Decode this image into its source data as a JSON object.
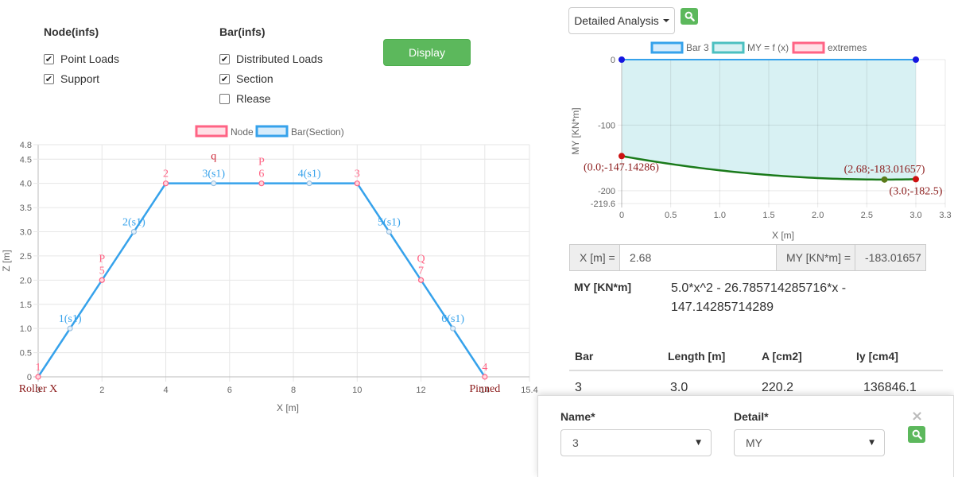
{
  "options": {
    "node_heading": "Node(infs)",
    "bar_heading": "Bar(infs)",
    "node_items": [
      {
        "label": "Point Loads",
        "checked": true
      },
      {
        "label": "Support",
        "checked": true
      }
    ],
    "bar_items": [
      {
        "label": "Distributed Loads",
        "checked": true
      },
      {
        "label": "Section",
        "checked": true
      },
      {
        "label": "Rlease",
        "checked": false
      }
    ],
    "display_button": "Display",
    "check_mark": "✔"
  },
  "structure_chart": {
    "legend": [
      {
        "name": "Node",
        "color": "#ff6384"
      },
      {
        "name": "Bar(Section)",
        "color": "#36a2eb"
      }
    ],
    "xlabel": "X [m]",
    "ylabel": "Z [m]",
    "x_ticks": [
      "0",
      "2",
      "4",
      "6",
      "8",
      "10",
      "12",
      "14",
      "15.4"
    ],
    "y_ticks": [
      "0",
      "0.5",
      "1.0",
      "1.5",
      "2.0",
      "2.5",
      "3.0",
      "3.5",
      "4.0",
      "4.5",
      "4.8"
    ],
    "bar_color": "#36a2eb",
    "node_color": "#ff6384"
  },
  "chart_data": [
    {
      "type": "line",
      "xlabel": "X [m]",
      "ylabel": "Z [m]",
      "xlim": [
        0,
        15.4
      ],
      "ylim": [
        0,
        4.8
      ],
      "series": [
        {
          "name": "Bar(Section)",
          "points": [
            [
              0,
              0
            ],
            [
              4,
              4
            ],
            [
              10,
              4
            ],
            [
              14,
              0
            ]
          ]
        },
        {
          "name": "Node",
          "points": [
            [
              0,
              0
            ],
            [
              4,
              4
            ],
            [
              10,
              4
            ],
            [
              14,
              0
            ],
            [
              2,
              2
            ],
            [
              7,
              4
            ],
            [
              12,
              2
            ]
          ]
        }
      ],
      "node_labels": [
        {
          "text": "1",
          "x": 0,
          "y": 0
        },
        {
          "text": "2",
          "x": 4,
          "y": 4
        },
        {
          "text": "3",
          "x": 10,
          "y": 4
        },
        {
          "text": "4",
          "x": 14,
          "y": 0
        },
        {
          "text": "5",
          "x": 2,
          "y": 2
        },
        {
          "text": "6",
          "x": 7,
          "y": 4
        },
        {
          "text": "7",
          "x": 12,
          "y": 2
        }
      ],
      "load_labels": [
        {
          "text": "P",
          "x": 2,
          "y": 2
        },
        {
          "text": "P",
          "x": 7,
          "y": 4
        },
        {
          "text": "Q",
          "x": 12,
          "y": 2
        },
        {
          "text": "q",
          "x": 5.5,
          "y": 4
        }
      ],
      "section_labels": [
        {
          "text": "1(s1)",
          "x": 1,
          "y": 1
        },
        {
          "text": "2(s1)",
          "x": 3,
          "y": 3
        },
        {
          "text": "3(s1)",
          "x": 5.5,
          "y": 4
        },
        {
          "text": "4(s1)",
          "x": 8.5,
          "y": 4
        },
        {
          "text": "5(s1)",
          "x": 11,
          "y": 3
        },
        {
          "text": "6(s1)",
          "x": 13,
          "y": 1
        }
      ],
      "support_labels": [
        {
          "text": "Roller X",
          "x": 0,
          "y": 0
        },
        {
          "text": "Pinned",
          "x": 14,
          "y": 0
        }
      ]
    },
    {
      "type": "area",
      "xlabel": "X [m]",
      "ylabel": "MY [KN*m]",
      "xlim": [
        0,
        3.3
      ],
      "ylim": [
        -219.6,
        0
      ],
      "x_ticks": [
        "0",
        "0.5",
        "1.0",
        "1.5",
        "2.0",
        "2.5",
        "3.0",
        "3.3"
      ],
      "y_ticks": [
        "0",
        "-100",
        "-200",
        "-219.6"
      ],
      "legend": [
        {
          "name": "Bar 3",
          "color": "#36a2eb"
        },
        {
          "name": "MY = f (x)",
          "color": "#4bc0c0"
        },
        {
          "name": "extremes",
          "color": "#ff6384"
        }
      ],
      "bar_points": [
        [
          0,
          0
        ],
        [
          3,
          0
        ]
      ],
      "curve": {
        "a": 5.0,
        "b": -26.785714285716,
        "c": -147.14285714289,
        "x_from": 0,
        "x_to": 3
      },
      "extremes": [
        {
          "x": 0.0,
          "y": -147.14286,
          "label": "(0.0;-147.14286)"
        },
        {
          "x": 2.68,
          "y": -183.01657,
          "label": "(2.68;-183.01657)"
        },
        {
          "x": 3.0,
          "y": -182.5,
          "label": "(3.0;-182.5)"
        }
      ]
    }
  ],
  "analysis": {
    "dropdown_label": "Detailed Analysis",
    "search_icon": "search-icon",
    "x_label": "X [m] =",
    "x_value": "2.68",
    "my_label": "MY [KN*m] =",
    "my_value": "-183.01657",
    "formula_label": "MY [KN*m]",
    "formula_line1": "5.0*x^2 - 26.785714285716*x -",
    "formula_line2": "147.14285714289",
    "table_headers": [
      "Bar",
      "Length [m]",
      "A [cm2]",
      "Iy [cm4]"
    ],
    "table_row": [
      "3",
      "3.0",
      "220.2",
      "136846.1"
    ]
  },
  "modal": {
    "name_label": "Name*",
    "detail_label": "Detail*",
    "name_value": "3",
    "detail_value": "MY",
    "close_glyph": "×",
    "select_caret": "▼"
  },
  "colors": {
    "green": "#5cb85c",
    "curve": "#1a7a1a",
    "extreme": "#cc1111",
    "bar_point": "#1515e0",
    "area_fill": "#d8f1f3"
  }
}
